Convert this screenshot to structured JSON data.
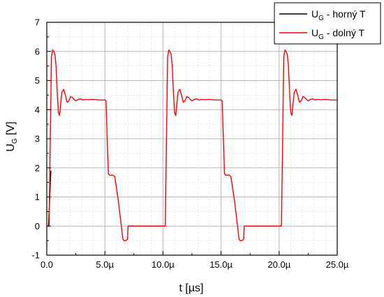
{
  "chart_data": {
    "type": "line",
    "xlabel": "t [µs]",
    "ylabel": {
      "base": "U",
      "sub": "G",
      "rest": " [V]"
    },
    "xlim": [
      0,
      25
    ],
    "ylim": [
      -1,
      7
    ],
    "x_ticks": [
      0,
      5,
      10,
      15,
      20,
      25
    ],
    "x_tick_labels": [
      "0.0",
      "5.0µ",
      "10.0µ",
      "15.0µ",
      "20.0µ",
      "25.0µ"
    ],
    "y_ticks": [
      -1,
      0,
      1,
      2,
      3,
      4,
      5,
      6,
      7
    ],
    "y_tick_labels": [
      "-1",
      "0",
      "1",
      "2",
      "3",
      "4",
      "5",
      "6",
      "7"
    ],
    "grid": true,
    "legend_position": "top-right",
    "series": [
      {
        "name": "U_G - horný T",
        "legend": {
          "base": "U",
          "sub": "G",
          "rest": " - horný T"
        },
        "color": "#000000",
        "x": [
          0.15,
          0.35
        ],
        "y": [
          0,
          1.9
        ]
      },
      {
        "name": "U_G - dolný T",
        "legend": {
          "base": "U",
          "sub": "G",
          "rest": " - dolný T"
        },
        "color": "#ff0000",
        "x": [
          0,
          0.2,
          0.4,
          0.5,
          0.6,
          0.7,
          0.8,
          0.9,
          1.0,
          1.1,
          1.2,
          1.3,
          1.45,
          1.6,
          1.75,
          1.9,
          2.05,
          2.2,
          2.35,
          2.5,
          2.7,
          2.9,
          3.1,
          3.3,
          3.6,
          4.0,
          4.5,
          5.0,
          5.1,
          5.2,
          5.3,
          5.4,
          5.55,
          5.7,
          5.85,
          6.0,
          6.15,
          6.3,
          6.45,
          6.55,
          6.65,
          6.8,
          6.95,
          7.0,
          7.05,
          8.0,
          9.0,
          10.1,
          10.2,
          10.4,
          10.5,
          10.6,
          10.7,
          10.8,
          10.9,
          11.0,
          11.1,
          11.2,
          11.3,
          11.45,
          11.6,
          11.75,
          11.9,
          12.05,
          12.2,
          12.35,
          12.5,
          12.7,
          12.9,
          13.1,
          13.3,
          13.6,
          14.0,
          14.5,
          15.0,
          15.1,
          15.2,
          15.3,
          15.4,
          15.55,
          15.7,
          15.85,
          16.0,
          16.15,
          16.3,
          16.45,
          16.55,
          16.65,
          16.8,
          16.95,
          17.0,
          17.05,
          18.0,
          19.0,
          20.1,
          20.2,
          20.4,
          20.5,
          20.6,
          20.7,
          20.8,
          20.9,
          21.0,
          21.1,
          21.2,
          21.3,
          21.45,
          21.6,
          21.75,
          21.9,
          22.05,
          22.2,
          22.35,
          22.5,
          22.7,
          22.9,
          23.1,
          23.3,
          23.6,
          24.0,
          24.5,
          25.0
        ],
        "y": [
          0,
          0,
          5.8,
          6.05,
          6.0,
          5.9,
          5.5,
          4.6,
          3.9,
          3.8,
          4.2,
          4.6,
          4.7,
          4.5,
          4.25,
          4.3,
          4.45,
          4.42,
          4.35,
          4.3,
          4.35,
          4.37,
          4.33,
          4.35,
          4.34,
          4.35,
          4.33,
          4.33,
          4.3,
          3.0,
          1.8,
          1.75,
          1.75,
          1.75,
          1.7,
          1.3,
          0.9,
          0.4,
          -0.1,
          -0.45,
          -0.5,
          -0.5,
          -0.45,
          0,
          0,
          0,
          0,
          0,
          0,
          5.8,
          6.05,
          6.0,
          5.9,
          5.5,
          4.6,
          3.9,
          3.8,
          4.2,
          4.6,
          4.7,
          4.5,
          4.25,
          4.3,
          4.45,
          4.42,
          4.35,
          4.3,
          4.35,
          4.37,
          4.33,
          4.35,
          4.34,
          4.35,
          4.33,
          4.33,
          4.3,
          3.0,
          1.8,
          1.75,
          1.75,
          1.75,
          1.7,
          1.3,
          0.9,
          0.4,
          -0.1,
          -0.45,
          -0.5,
          -0.5,
          -0.45,
          0,
          0,
          0,
          0,
          0,
          0,
          5.8,
          6.05,
          6.0,
          5.9,
          5.5,
          4.6,
          3.9,
          3.8,
          4.2,
          4.6,
          4.7,
          4.5,
          4.25,
          4.3,
          4.45,
          4.42,
          4.35,
          4.3,
          4.35,
          4.37,
          4.33,
          4.35,
          4.34,
          4.35,
          4.33,
          4.33
        ]
      }
    ]
  }
}
